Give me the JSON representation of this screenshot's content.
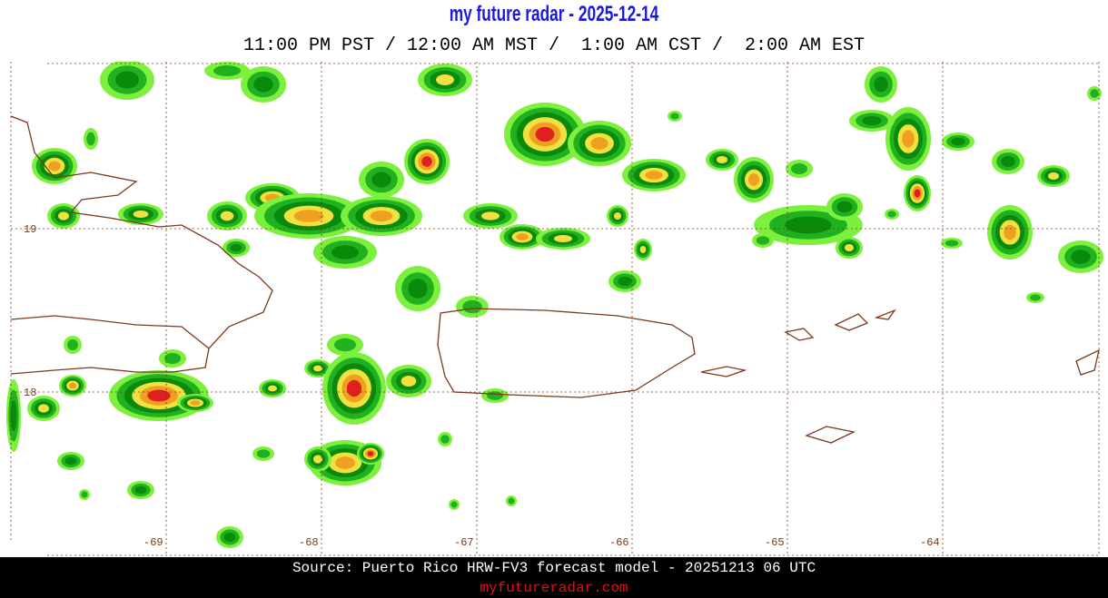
{
  "header": {
    "title": "my future radar - 2025-12-14",
    "subtitle": "11:00 PM PST / 12:00 AM MST /  1:00 AM CST /  2:00 AM EST"
  },
  "map": {
    "lon_labels": [
      "-69",
      "-68",
      "-67",
      "-66",
      "-65",
      "-64"
    ],
    "lat_labels": [
      "19",
      "18"
    ]
  },
  "footer": {
    "source": "Source: Puerto Rico HRW-FV3 forecast model - 20251213 06 UTC",
    "link": "myfutureradar.com"
  }
}
